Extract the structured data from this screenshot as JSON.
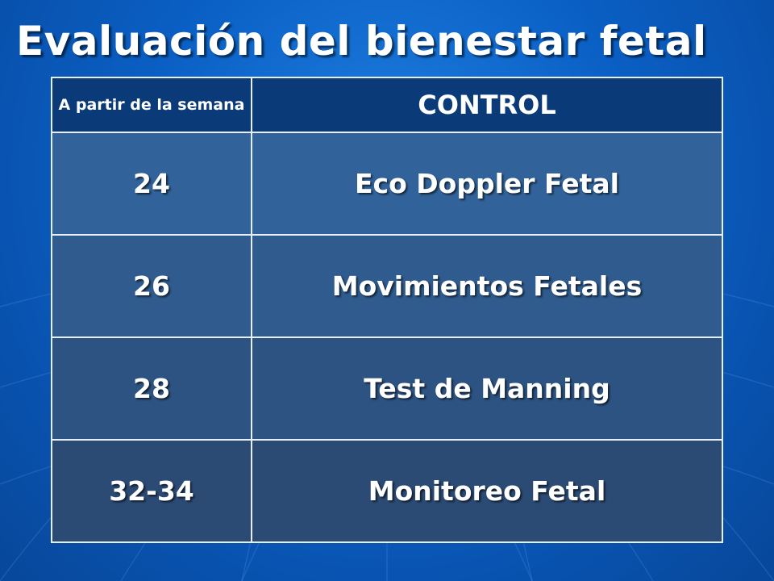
{
  "slide": {
    "title": "Evaluación del bienestar fetal"
  },
  "table": {
    "headers": {
      "week": "A partir de la semana",
      "control": "CONTROL"
    },
    "rows": [
      {
        "week": "24",
        "control": "Eco Doppler Fetal"
      },
      {
        "week": "26",
        "control": "Movimientos Fetales"
      },
      {
        "week": "28",
        "control": "Test de Manning"
      },
      {
        "week": "32-34",
        "control": "Monitoreo Fetal"
      }
    ]
  }
}
